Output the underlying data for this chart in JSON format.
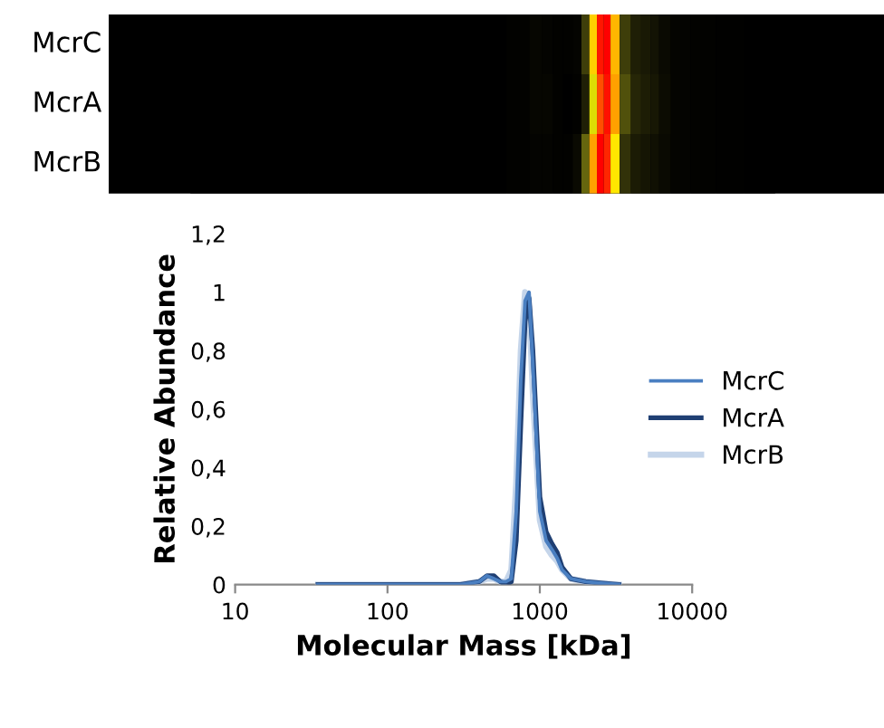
{
  "chart_data": {
    "type": "line",
    "xlabel": "Molecular Mass [kDa]",
    "ylabel": "Relative Abundance",
    "x": [
      35,
      100,
      300,
      400,
      450,
      500,
      550,
      600,
      650,
      700,
      750,
      800,
      850,
      900,
      1000,
      1100,
      1200,
      1300,
      1400,
      1600,
      2000,
      2500,
      3300
    ],
    "series": [
      {
        "name": "McrC",
        "color": "#4a7fc1",
        "values": [
          0,
          0,
          0,
          0.01,
          0.03,
          0.02,
          0.01,
          0.01,
          0.02,
          0.25,
          0.7,
          0.97,
          1.0,
          0.75,
          0.25,
          0.15,
          0.12,
          0.09,
          0.05,
          0.02,
          0.01,
          0.005,
          0
        ]
      },
      {
        "name": "McrA",
        "color": "#1f3f73",
        "values": [
          0,
          0,
          0,
          0.01,
          0.03,
          0.03,
          0.01,
          0,
          0.01,
          0.15,
          0.55,
          0.9,
          0.98,
          0.8,
          0.3,
          0.18,
          0.14,
          0.11,
          0.06,
          0.02,
          0.01,
          0.005,
          0
        ]
      },
      {
        "name": "McrB",
        "color": "#c5d5ea",
        "values": [
          0,
          0,
          0,
          0.01,
          0.02,
          0.02,
          0.01,
          0.01,
          0.05,
          0.35,
          0.8,
          1.0,
          0.95,
          0.65,
          0.22,
          0.13,
          0.1,
          0.08,
          0.05,
          0.02,
          0.01,
          0.005,
          0
        ]
      }
    ],
    "log": "x",
    "xlim": [
      10,
      10000
    ],
    "xticks": [
      10,
      100,
      1000,
      10000
    ],
    "ylim": [
      0,
      1.2
    ],
    "yticks": [
      0,
      {
        "value": 0.2,
        "label": "0,2"
      },
      {
        "value": 0.4,
        "label": "0,4"
      },
      {
        "value": 0.6,
        "label": "0,6"
      },
      {
        "value": 0.8,
        "label": "0,8"
      },
      1,
      {
        "value": 1.2,
        "label": "1,2"
      }
    ],
    "legend": "right",
    "grid": false
  }
}
